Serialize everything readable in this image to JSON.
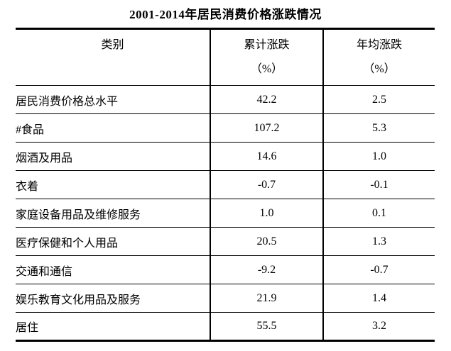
{
  "title": "2001-2014年居民消费价格涨跌情况",
  "table": {
    "columns": [
      {
        "label": "类别",
        "unit": ""
      },
      {
        "label": "累计涨跌",
        "unit": "（%）"
      },
      {
        "label": "年均涨跌",
        "unit": "（%）"
      }
    ],
    "rows": [
      {
        "category": "居民消费价格总水平",
        "cumulative": "42.2",
        "annual": "2.5",
        "indent": 0
      },
      {
        "category": "#食品",
        "cumulative": "107.2",
        "annual": "5.3",
        "indent": 1
      },
      {
        "category": "烟酒及用品",
        "cumulative": "14.6",
        "annual": "1.0",
        "indent": 2
      },
      {
        "category": "衣着",
        "cumulative": "-0.7",
        "annual": "-0.1",
        "indent": 2
      },
      {
        "category": "家庭设备用品及维修服务",
        "cumulative": "1.0",
        "annual": "0.1",
        "indent": 2
      },
      {
        "category": "医疗保健和个人用品",
        "cumulative": "20.5",
        "annual": "1.3",
        "indent": 2
      },
      {
        "category": "交通和通信",
        "cumulative": "-9.2",
        "annual": "-0.7",
        "indent": 2
      },
      {
        "category": "娱乐教育文化用品及服务",
        "cumulative": "21.9",
        "annual": "1.4",
        "indent": 2
      },
      {
        "category": "居住",
        "cumulative": "55.5",
        "annual": "3.2",
        "indent": 2
      }
    ]
  },
  "colors": {
    "text": "#000000",
    "background": "#ffffff",
    "line": "#000000"
  }
}
